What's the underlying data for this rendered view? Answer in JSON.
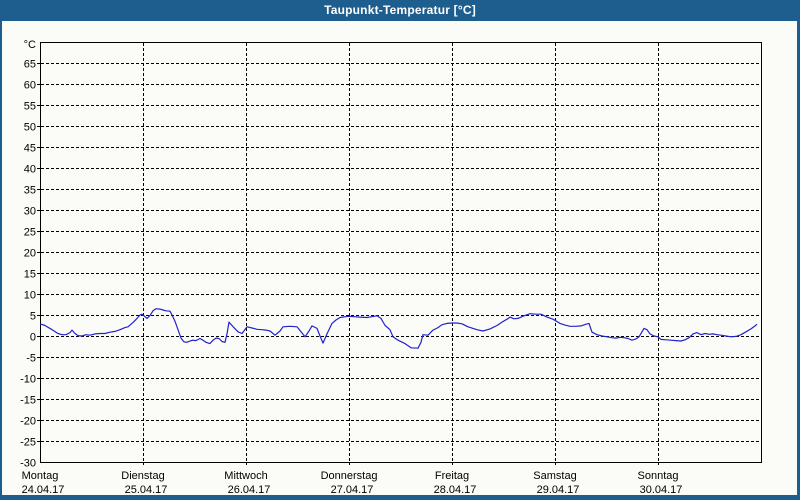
{
  "window": {
    "title": "Taupunkt-Temperatur [°C]",
    "titlebar_color": "#1e5e8e",
    "canvas_color": "#fbfbf7"
  },
  "chart_data": {
    "type": "line",
    "title": "Taupunkt-Temperatur [°C]",
    "y_unit_label": "°C",
    "ylim": [
      -30,
      70
    ],
    "y_tick_step": 5,
    "y_tick_labels": [
      "65",
      "60",
      "55",
      "50",
      "45",
      "40",
      "35",
      "30",
      "25",
      "20",
      "15",
      "10",
      "5",
      "0",
      "-5",
      "-10",
      "-15",
      "-20",
      "-25",
      "-30"
    ],
    "grid": "dashed",
    "legend": "none",
    "x_range_days": [
      0,
      7
    ],
    "x_days": [
      {
        "label": "Montag",
        "date": "24.04.17"
      },
      {
        "label": "Dienstag",
        "date": "25.04.17"
      },
      {
        "label": "Mittwoch",
        "date": "26.04.17"
      },
      {
        "label": "Donnerstag",
        "date": "27.04.17"
      },
      {
        "label": "Freitag",
        "date": "28.04.17"
      },
      {
        "label": "Samstag",
        "date": "29.04.17"
      },
      {
        "label": "Sonntag",
        "date": "30.04.17"
      }
    ],
    "series": [
      {
        "name": "Taupunkt",
        "color": "#2222cc",
        "points": [
          [
            0.0,
            2.9
          ],
          [
            0.049,
            2.5
          ],
          [
            0.117,
            1.5
          ],
          [
            0.175,
            0.6
          ],
          [
            0.214,
            0.3
          ],
          [
            0.252,
            0.3
          ],
          [
            0.291,
            0.8
          ],
          [
            0.311,
            1.4
          ],
          [
            0.34,
            0.6
          ],
          [
            0.369,
            0.1
          ],
          [
            0.408,
            0.0
          ],
          [
            0.447,
            0.3
          ],
          [
            0.485,
            0.2
          ],
          [
            0.534,
            0.5
          ],
          [
            0.583,
            0.6
          ],
          [
            0.631,
            0.6
          ],
          [
            0.68,
            0.9
          ],
          [
            0.728,
            1.1
          ],
          [
            0.777,
            1.5
          ],
          [
            0.825,
            2.0
          ],
          [
            0.854,
            2.2
          ],
          [
            0.903,
            3.2
          ],
          [
            0.942,
            4.2
          ],
          [
            0.971,
            5.0
          ],
          [
            0.99,
            5.2
          ],
          [
            1.019,
            4.6
          ],
          [
            1.039,
            4.2
          ],
          [
            1.068,
            4.9
          ],
          [
            1.097,
            6.0
          ],
          [
            1.126,
            6.5
          ],
          [
            1.165,
            6.4
          ],
          [
            1.194,
            6.2
          ],
          [
            1.223,
            6.0
          ],
          [
            1.262,
            5.9
          ],
          [
            1.282,
            5.0
          ],
          [
            1.311,
            3.5
          ],
          [
            1.34,
            1.5
          ],
          [
            1.369,
            -0.5
          ],
          [
            1.398,
            -1.4
          ],
          [
            1.427,
            -1.5
          ],
          [
            1.456,
            -1.2
          ],
          [
            1.485,
            -1.0
          ],
          [
            1.514,
            -1.1
          ],
          [
            1.553,
            -0.6
          ],
          [
            1.583,
            -1.0
          ],
          [
            1.612,
            -1.5
          ],
          [
            1.65,
            -1.8
          ],
          [
            1.68,
            -1.0
          ],
          [
            1.709,
            -0.5
          ],
          [
            1.738,
            -0.6
          ],
          [
            1.767,
            -1.3
          ],
          [
            1.796,
            -1.5
          ],
          [
            1.816,
            0.5
          ],
          [
            1.835,
            3.3
          ],
          [
            1.883,
            2.0
          ],
          [
            1.922,
            1.0
          ],
          [
            1.961,
            0.6
          ],
          [
            2.01,
            2.2
          ],
          [
            2.058,
            1.9
          ],
          [
            2.107,
            1.6
          ],
          [
            2.155,
            1.5
          ],
          [
            2.194,
            1.4
          ],
          [
            2.233,
            1.2
          ],
          [
            2.282,
            0.2
          ],
          [
            2.33,
            1.2
          ],
          [
            2.359,
            2.2
          ],
          [
            2.427,
            2.3
          ],
          [
            2.495,
            2.2
          ],
          [
            2.534,
            1.0
          ],
          [
            2.573,
            -0.2
          ],
          [
            2.612,
            1.2
          ],
          [
            2.641,
            2.4
          ],
          [
            2.689,
            1.8
          ],
          [
            2.718,
            0.0
          ],
          [
            2.748,
            -1.7
          ],
          [
            2.786,
            0.5
          ],
          [
            2.835,
            3.0
          ],
          [
            2.874,
            3.8
          ],
          [
            2.913,
            4.4
          ],
          [
            2.99,
            4.7
          ],
          [
            3.049,
            4.6
          ],
          [
            3.107,
            4.5
          ],
          [
            3.175,
            4.4
          ],
          [
            3.223,
            4.6
          ],
          [
            3.272,
            4.8
          ],
          [
            3.311,
            4.2
          ],
          [
            3.35,
            2.5
          ],
          [
            3.398,
            1.5
          ],
          [
            3.427,
            -0.2
          ],
          [
            3.476,
            -1.0
          ],
          [
            3.544,
            -1.8
          ],
          [
            3.602,
            -2.8
          ],
          [
            3.67,
            -2.9
          ],
          [
            3.699,
            -1.5
          ],
          [
            3.718,
            0.3
          ],
          [
            3.767,
            0.2
          ],
          [
            3.816,
            1.4
          ],
          [
            3.864,
            2.0
          ],
          [
            3.903,
            2.7
          ],
          [
            3.951,
            3.0
          ],
          [
            4.0,
            3.1
          ],
          [
            4.049,
            3.1
          ],
          [
            4.097,
            2.9
          ],
          [
            4.155,
            2.2
          ],
          [
            4.243,
            1.5
          ],
          [
            4.301,
            1.2
          ],
          [
            4.369,
            1.7
          ],
          [
            4.437,
            2.5
          ],
          [
            4.485,
            3.3
          ],
          [
            4.534,
            4.0
          ],
          [
            4.563,
            4.5
          ],
          [
            4.602,
            4.1
          ],
          [
            4.641,
            4.2
          ],
          [
            4.699,
            4.8
          ],
          [
            4.757,
            5.3
          ],
          [
            4.816,
            5.2
          ],
          [
            4.864,
            5.2
          ],
          [
            4.922,
            4.5
          ],
          [
            4.981,
            4.0
          ],
          [
            5.049,
            3.0
          ],
          [
            5.097,
            2.6
          ],
          [
            5.146,
            2.3
          ],
          [
            5.204,
            2.3
          ],
          [
            5.252,
            2.4
          ],
          [
            5.301,
            2.8
          ],
          [
            5.33,
            3.0
          ],
          [
            5.359,
            0.9
          ],
          [
            5.408,
            0.3
          ],
          [
            5.456,
            0.0
          ],
          [
            5.505,
            -0.2
          ],
          [
            5.553,
            -0.4
          ],
          [
            5.592,
            -0.5
          ],
          [
            5.631,
            -0.3
          ],
          [
            5.67,
            -0.4
          ],
          [
            5.709,
            -0.6
          ],
          [
            5.748,
            -1.0
          ],
          [
            5.786,
            -0.7
          ],
          [
            5.816,
            -0.2
          ],
          [
            5.845,
            1.0
          ],
          [
            5.864,
            1.8
          ],
          [
            5.893,
            1.5
          ],
          [
            5.922,
            0.5
          ],
          [
            5.961,
            0.0
          ],
          [
            6.0,
            -0.2
          ],
          [
            6.029,
            -0.8
          ],
          [
            6.078,
            -0.9
          ],
          [
            6.126,
            -1.0
          ],
          [
            6.175,
            -1.1
          ],
          [
            6.223,
            -1.2
          ],
          [
            6.262,
            -0.9
          ],
          [
            6.301,
            -0.4
          ],
          [
            6.34,
            0.5
          ],
          [
            6.379,
            0.8
          ],
          [
            6.417,
            0.3
          ],
          [
            6.456,
            0.6
          ],
          [
            6.495,
            0.4
          ],
          [
            6.534,
            0.5
          ],
          [
            6.573,
            0.3
          ],
          [
            6.612,
            0.2
          ],
          [
            6.66,
            0.0
          ],
          [
            6.709,
            -0.2
          ],
          [
            6.757,
            -0.1
          ],
          [
            6.806,
            0.3
          ],
          [
            6.854,
            1.0
          ],
          [
            6.903,
            1.7
          ],
          [
            6.942,
            2.4
          ],
          [
            6.961,
            2.8
          ]
        ]
      }
    ],
    "colors": {
      "grid": "#000000",
      "frame": "#000000",
      "text": "#000000"
    }
  }
}
